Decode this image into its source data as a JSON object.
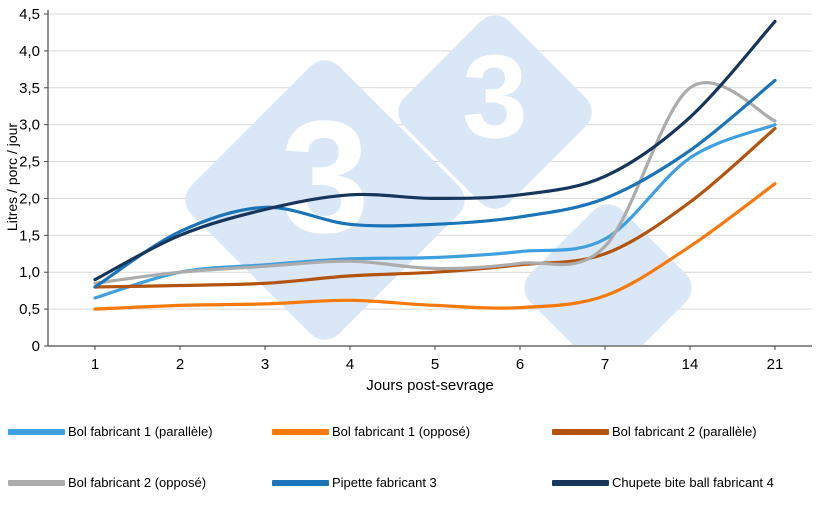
{
  "chart_data": {
    "type": "line",
    "title": "",
    "xlabel": "Jours post-sevrage",
    "ylabel": "Litres / porc / jour",
    "categories": [
      "1",
      "2",
      "3",
      "4",
      "5",
      "6",
      "7",
      "14",
      "21"
    ],
    "y_ticks": [
      "0",
      "0,5",
      "1,0",
      "1,5",
      "2,0",
      "2,5",
      "3,0",
      "3,5",
      "4,0",
      "4,5"
    ],
    "ylim": [
      0,
      4.5
    ],
    "grid": "horizontal",
    "legend_position": "bottom",
    "colors": {
      "grid": "#d9d9d9",
      "axis": "#4a4a4a",
      "text": "#000000"
    },
    "series": [
      {
        "name": "Bol fabricant 1 (parallèle)",
        "color": "#3FA0DF",
        "values": [
          0.65,
          1.0,
          1.1,
          1.18,
          1.2,
          1.28,
          1.45,
          2.55,
          3.0
        ]
      },
      {
        "name": "Bol fabricant 1 (opposé)",
        "color": "#F8790B",
        "values": [
          0.5,
          0.55,
          0.57,
          0.62,
          0.55,
          0.52,
          0.68,
          1.35,
          2.2
        ]
      },
      {
        "name": "Bol fabricant 2 (parallèle)",
        "color": "#B2540E",
        "values": [
          0.8,
          0.82,
          0.85,
          0.95,
          1.0,
          1.1,
          1.25,
          1.95,
          2.95
        ]
      },
      {
        "name": "Bol fabricant 2 (opposé)",
        "color": "#ACACAC",
        "values": [
          0.85,
          1.0,
          1.08,
          1.15,
          1.05,
          1.12,
          1.35,
          3.5,
          3.05
        ]
      },
      {
        "name": "Pipette fabricant 3",
        "color": "#1B74B8",
        "values": [
          0.8,
          1.55,
          1.88,
          1.65,
          1.65,
          1.75,
          2.0,
          2.65,
          3.6
        ]
      },
      {
        "name": "Chupete bite ball fabricant 4",
        "color": "#16365C",
        "values": [
          0.9,
          1.5,
          1.85,
          2.05,
          2.0,
          2.05,
          2.3,
          3.1,
          4.4
        ]
      }
    ],
    "watermark": {
      "text": "3",
      "diamond_color": "#DAE7F6",
      "text_color": "#FFFFFF"
    }
  }
}
